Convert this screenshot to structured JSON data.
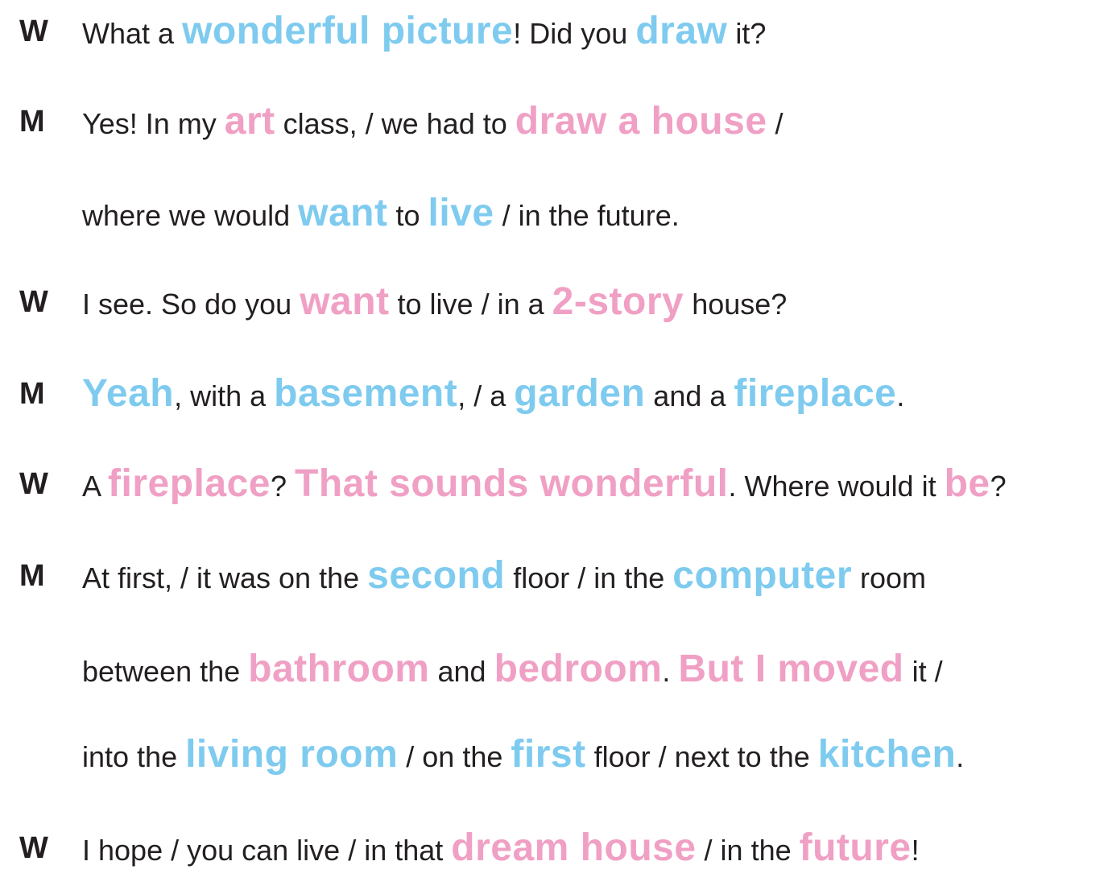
{
  "colors": {
    "text": "#231f20",
    "blue_emphasis": "#7ecbef",
    "pink_emphasis": "#f0a0c4",
    "background": "#ffffff"
  },
  "lines": [
    {
      "speaker": "W",
      "segments": [
        {
          "text": "What a ",
          "style": "plain"
        },
        {
          "text": "wonderful picture",
          "style": "blue"
        },
        {
          "text": "! Did you ",
          "style": "plain"
        },
        {
          "text": "draw",
          "style": "blue"
        },
        {
          "text": " it?",
          "style": "plain"
        }
      ]
    },
    {
      "speaker": "M",
      "segments": [
        {
          "text": "Yes! In my ",
          "style": "plain"
        },
        {
          "text": "art",
          "style": "pink"
        },
        {
          "text": " class, / we had to ",
          "style": "plain"
        },
        {
          "text": "draw a house",
          "style": "pink"
        },
        {
          "text": " /",
          "style": "plain"
        }
      ]
    },
    {
      "speaker": "",
      "segments": [
        {
          "text": "where we would ",
          "style": "plain"
        },
        {
          "text": "want",
          "style": "blue"
        },
        {
          "text": " to ",
          "style": "plain"
        },
        {
          "text": "live",
          "style": "blue"
        },
        {
          "text": " / in the future.",
          "style": "plain"
        }
      ]
    },
    {
      "speaker": "W",
      "segments": [
        {
          "text": " I see. So do you ",
          "style": "plain"
        },
        {
          "text": "want",
          "style": "pink"
        },
        {
          "text": " to live / in a ",
          "style": "plain"
        },
        {
          "text": "2-story",
          "style": "pink"
        },
        {
          "text": " house?",
          "style": "plain"
        }
      ]
    },
    {
      "speaker": "M",
      "segments": [
        {
          "text": "Yeah",
          "style": "blue"
        },
        {
          "text": ", with a ",
          "style": "plain"
        },
        {
          "text": "basement",
          "style": "blue"
        },
        {
          "text": ", / a ",
          "style": "plain"
        },
        {
          "text": "garden",
          "style": "blue"
        },
        {
          "text": " and a ",
          "style": "plain"
        },
        {
          "text": "fireplace",
          "style": "blue"
        },
        {
          "text": ".",
          "style": "plain"
        }
      ]
    },
    {
      "speaker": "W",
      "segments": [
        {
          "text": "A ",
          "style": "plain"
        },
        {
          "text": "fireplace",
          "style": "pink"
        },
        {
          "text": "? ",
          "style": "plain"
        },
        {
          "text": "That sounds wonderful",
          "style": "pink"
        },
        {
          "text": ". Where would it ",
          "style": "plain"
        },
        {
          "text": "be",
          "style": "pink"
        },
        {
          "text": "?",
          "style": "plain"
        }
      ]
    },
    {
      "speaker": "M",
      "segments": [
        {
          "text": "At first, / it was on the ",
          "style": "plain"
        },
        {
          "text": "second",
          "style": "blue"
        },
        {
          "text": " floor / in the ",
          "style": "plain"
        },
        {
          "text": "computer",
          "style": "blue"
        },
        {
          "text": " room",
          "style": "plain"
        }
      ]
    },
    {
      "speaker": "",
      "segments": [
        {
          "text": "between the ",
          "style": "plain"
        },
        {
          "text": "bathroom",
          "style": "pink"
        },
        {
          "text": " and ",
          "style": "plain"
        },
        {
          "text": "bedroom",
          "style": "pink"
        },
        {
          "text": ". ",
          "style": "plain"
        },
        {
          "text": "But I moved",
          "style": "pink"
        },
        {
          "text": " it /",
          "style": "plain"
        }
      ]
    },
    {
      "speaker": "",
      "segments": [
        {
          "text": "into the ",
          "style": "plain"
        },
        {
          "text": "living room",
          "style": "blue"
        },
        {
          "text": " / on the ",
          "style": "plain"
        },
        {
          "text": "first",
          "style": "blue"
        },
        {
          "text": " floor / next to the ",
          "style": "plain"
        },
        {
          "text": "kitchen",
          "style": "blue"
        },
        {
          "text": ".",
          "style": "plain"
        }
      ]
    },
    {
      "speaker": "W",
      "segments": [
        {
          "text": "I hope / you can live / in that ",
          "style": "plain"
        },
        {
          "text": "dream house",
          "style": "pink"
        },
        {
          "text": " / in the ",
          "style": "plain"
        },
        {
          "text": "future",
          "style": "pink"
        },
        {
          "text": "!",
          "style": "plain"
        }
      ]
    }
  ]
}
